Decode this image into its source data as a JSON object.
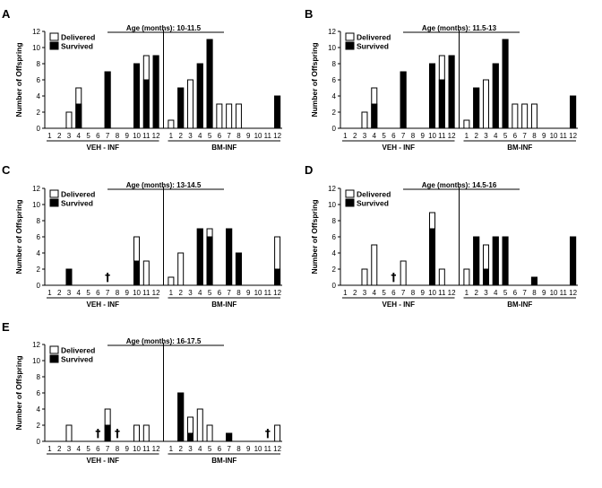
{
  "chart_data": [
    {
      "type": "bar",
      "panel": "A",
      "title": "Age (months): 10-11.5",
      "ylabel": "Number of Offspring",
      "ylim": [
        0,
        12
      ],
      "yticks": [
        "0",
        "2",
        "4",
        "6",
        "8",
        "10",
        "12"
      ],
      "legend": [
        "Delivered",
        "Survived"
      ],
      "groups": [
        {
          "name": "VEH - INF",
          "categories": [
            "1",
            "2",
            "3",
            "4",
            "5",
            "6",
            "7",
            "8",
            "9",
            "10",
            "11",
            "12"
          ],
          "delivered": [
            0,
            0,
            2,
            5,
            0,
            0,
            7,
            0,
            0,
            8,
            9,
            9
          ],
          "survived": [
            0,
            0,
            0,
            3,
            0,
            0,
            7,
            0,
            0,
            8,
            6,
            9
          ],
          "deceased": []
        },
        {
          "name": "BM-INF",
          "categories": [
            "1",
            "2",
            "3",
            "4",
            "5",
            "6",
            "7",
            "8",
            "9",
            "10",
            "11",
            "12"
          ],
          "delivered": [
            1,
            5,
            6,
            8,
            11,
            3,
            3,
            3,
            0,
            0,
            0,
            4
          ],
          "survived": [
            0,
            5,
            0,
            8,
            11,
            0,
            0,
            0,
            0,
            0,
            0,
            4
          ],
          "deceased": []
        }
      ]
    },
    {
      "type": "bar",
      "panel": "B",
      "title": "Age (months): 11.5-13",
      "ylabel": "Number of Offspring",
      "ylim": [
        0,
        12
      ],
      "yticks": [
        "0",
        "2",
        "4",
        "6",
        "8",
        "10",
        "12"
      ],
      "legend": [
        "Delivered",
        "Survived"
      ],
      "groups": [
        {
          "name": "VEH - INF",
          "categories": [
            "1",
            "2",
            "3",
            "4",
            "5",
            "6",
            "7",
            "8",
            "9",
            "10",
            "11",
            "12"
          ],
          "delivered": [
            0,
            0,
            2,
            5,
            0,
            0,
            7,
            0,
            0,
            8,
            9,
            9
          ],
          "survived": [
            0,
            0,
            0,
            3,
            0,
            0,
            7,
            0,
            0,
            8,
            6,
            9
          ],
          "deceased": []
        },
        {
          "name": "BM-INF",
          "categories": [
            "1",
            "2",
            "3",
            "4",
            "5",
            "6",
            "7",
            "8",
            "9",
            "10",
            "11",
            "12"
          ],
          "delivered": [
            1,
            5,
            6,
            8,
            11,
            3,
            3,
            3,
            0,
            0,
            0,
            4
          ],
          "survived": [
            0,
            5,
            0,
            8,
            11,
            0,
            0,
            0,
            0,
            0,
            0,
            4
          ],
          "deceased": []
        }
      ]
    },
    {
      "type": "bar",
      "panel": "C",
      "title": "Age (months): 13-14.5",
      "ylabel": "Number of Offspring",
      "ylim": [
        0,
        12
      ],
      "yticks": [
        "0",
        "2",
        "4",
        "6",
        "8",
        "10",
        "12"
      ],
      "legend": [
        "Delivered",
        "Survived"
      ],
      "groups": [
        {
          "name": "VEH - INF",
          "categories": [
            "1",
            "2",
            "3",
            "4",
            "5",
            "6",
            "7",
            "8",
            "9",
            "10",
            "11",
            "12"
          ],
          "delivered": [
            0,
            0,
            2,
            0,
            0,
            0,
            0,
            0,
            0,
            6,
            3,
            0
          ],
          "survived": [
            0,
            0,
            2,
            0,
            0,
            0,
            0,
            0,
            0,
            3,
            0,
            0
          ],
          "deceased": [
            7
          ]
        },
        {
          "name": "BM-INF",
          "categories": [
            "1",
            "2",
            "3",
            "4",
            "5",
            "6",
            "7",
            "8",
            "9",
            "10",
            "11",
            "12"
          ],
          "delivered": [
            1,
            4,
            0,
            7,
            7,
            0,
            7,
            4,
            0,
            0,
            0,
            6
          ],
          "survived": [
            0,
            0,
            0,
            7,
            6,
            0,
            7,
            4,
            0,
            0,
            0,
            2
          ],
          "deceased": []
        }
      ]
    },
    {
      "type": "bar",
      "panel": "D",
      "title": "Age (months): 14.5-16",
      "ylabel": "Number of Offspring",
      "ylim": [
        0,
        12
      ],
      "yticks": [
        "0",
        "2",
        "4",
        "6",
        "8",
        "10",
        "12"
      ],
      "legend": [
        "Delivered",
        "Survived"
      ],
      "groups": [
        {
          "name": "VEH - INF",
          "categories": [
            "1",
            "2",
            "3",
            "4",
            "5",
            "6",
            "7",
            "8",
            "9",
            "10",
            "11",
            "12"
          ],
          "delivered": [
            0,
            0,
            2,
            5,
            0,
            0,
            3,
            0,
            0,
            9,
            2,
            0
          ],
          "survived": [
            0,
            0,
            0,
            0,
            0,
            0,
            0,
            0,
            0,
            7,
            0,
            0
          ],
          "deceased": [
            6
          ]
        },
        {
          "name": "BM-INF",
          "categories": [
            "1",
            "2",
            "3",
            "4",
            "5",
            "6",
            "7",
            "8",
            "9",
            "10",
            "11",
            "12"
          ],
          "delivered": [
            2,
            6,
            5,
            6,
            6,
            0,
            0,
            1,
            0,
            0,
            0,
            6
          ],
          "survived": [
            0,
            6,
            2,
            6,
            6,
            0,
            0,
            1,
            0,
            0,
            0,
            6
          ],
          "deceased": []
        }
      ]
    },
    {
      "type": "bar",
      "panel": "E",
      "title": "Age (months): 16-17.5",
      "ylabel": "Number of Offspring",
      "ylim": [
        0,
        12
      ],
      "yticks": [
        "0",
        "2",
        "4",
        "6",
        "8",
        "10",
        "12"
      ],
      "legend": [
        "Delivered",
        "Survived"
      ],
      "groups": [
        {
          "name": "VEH - INF",
          "categories": [
            "1",
            "2",
            "3",
            "4",
            "5",
            "6",
            "7",
            "8",
            "9",
            "10",
            "11",
            "12"
          ],
          "delivered": [
            0,
            0,
            2,
            0,
            0,
            0,
            4,
            0,
            0,
            2,
            2,
            0
          ],
          "survived": [
            0,
            0,
            0,
            0,
            0,
            0,
            2,
            0,
            0,
            0,
            0,
            0
          ],
          "deceased": [
            6,
            8
          ]
        },
        {
          "name": "BM-INF",
          "categories": [
            "1",
            "2",
            "3",
            "4",
            "5",
            "6",
            "7",
            "8",
            "9",
            "10",
            "11",
            "12"
          ],
          "delivered": [
            0,
            6,
            3,
            4,
            2,
            0,
            1,
            0,
            0,
            0,
            0,
            2
          ],
          "survived": [
            0,
            6,
            1,
            0,
            0,
            0,
            1,
            0,
            0,
            0,
            0,
            0
          ],
          "deceased": [
            11
          ]
        }
      ]
    }
  ],
  "deceased_marker": "†",
  "colors": {
    "delivered": "#ffffff",
    "survived": "#000000",
    "stroke": "#000000"
  }
}
